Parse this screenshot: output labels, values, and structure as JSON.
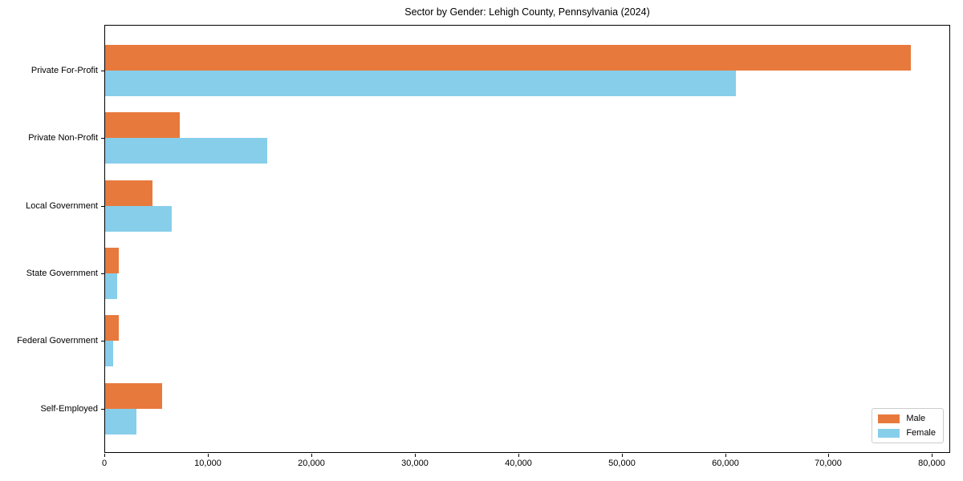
{
  "chart_data": {
    "type": "bar",
    "orientation": "horizontal",
    "title": "Sector by Gender: Lehigh County, Pennsylvania (2024)",
    "categories": [
      "Private For-Profit",
      "Private Non-Profit",
      "Local Government",
      "State Government",
      "Federal Government",
      "Self-Employed"
    ],
    "series": [
      {
        "name": "Male",
        "color": "#E8793C",
        "values": [
          77900,
          7200,
          4600,
          1300,
          1350,
          5500
        ]
      },
      {
        "name": "Female",
        "color": "#87CEEB",
        "values": [
          61000,
          15700,
          6400,
          1200,
          800,
          3000
        ]
      }
    ],
    "xlabel": "",
    "ylabel": "",
    "xlim": [
      0,
      81600
    ],
    "xticks": {
      "values": [
        0,
        10000,
        20000,
        30000,
        40000,
        50000,
        60000,
        70000,
        80000
      ],
      "labels": [
        "0",
        "10,000",
        "20,000",
        "30,000",
        "40,000",
        "50,000",
        "60,000",
        "70,000",
        "80,000"
      ]
    },
    "grid": false,
    "legend": {
      "position": "lower right"
    }
  }
}
